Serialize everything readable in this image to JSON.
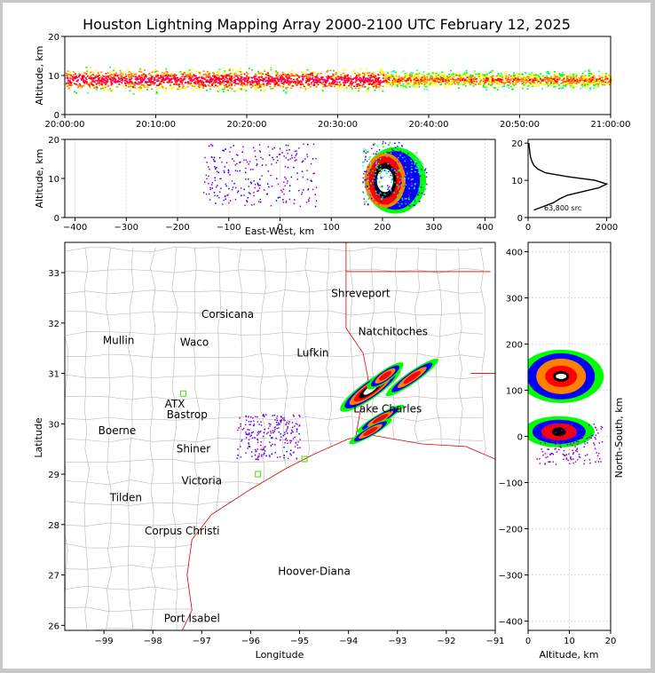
{
  "title": "Houston Lightning Mapping Array 2000-2100 UTC February 12, 2025",
  "chart_data": [
    {
      "id": "time-altitude",
      "type": "heatmap",
      "ylabel": "Altitude, km",
      "ylim": [
        0,
        20
      ],
      "yticks": [
        "0",
        "10",
        "20"
      ],
      "xticks": [
        "20:00:00",
        "20:10:00",
        "20:20:00",
        "20:30:00",
        "20:40:00",
        "20:50:00",
        "21:00:00"
      ],
      "xlim_minutes": [
        0,
        60
      ],
      "density_band_km": [
        2,
        15
      ],
      "peak_altitude_km": 9
    },
    {
      "id": "east-west-altitude",
      "type": "heatmap",
      "xlabel": "East-West, km",
      "ylabel": "Altitude, km",
      "xlim": [
        -420,
        420
      ],
      "ylim": [
        0,
        20
      ],
      "xticks": [
        "−400",
        "−300",
        "−200",
        "−100",
        "0",
        "100",
        "200",
        "300",
        "400"
      ],
      "yticks": [
        "0",
        "10",
        "20"
      ],
      "core_ew_km": [
        150,
        300
      ],
      "scatter_ew_km": [
        -150,
        70
      ]
    },
    {
      "id": "altitude-histogram",
      "type": "line",
      "annotation": "63,800 src",
      "xlim": [
        0,
        2100
      ],
      "ylim": [
        0,
        21
      ],
      "xticks": [
        "0",
        "2000"
      ],
      "yticks": [
        "0",
        "10",
        "20"
      ],
      "altitude_km": [
        2,
        3,
        4,
        5,
        6,
        7,
        8,
        9,
        10,
        11,
        12,
        13,
        14,
        15,
        16,
        17,
        18,
        19,
        20
      ],
      "source_count": [
        150,
        400,
        650,
        800,
        1000,
        1400,
        1800,
        2000,
        1700,
        1000,
        450,
        250,
        150,
        100,
        70,
        50,
        40,
        30,
        20
      ]
    },
    {
      "id": "plan-view-map",
      "type": "scatter",
      "xlabel": "Longitude",
      "ylabel": "Latitude",
      "xlim": [
        -99.8,
        -91
      ],
      "ylim": [
        25.9,
        33.6
      ],
      "xticks": [
        "−99",
        "−98",
        "−97",
        "−96",
        "−95",
        "−94",
        "−93",
        "−92",
        "−91"
      ],
      "yticks": [
        "26",
        "27",
        "28",
        "29",
        "30",
        "31",
        "32",
        "33"
      ],
      "cities": [
        {
          "name": "Shreveport",
          "lon": -93.75,
          "lat": 32.52
        },
        {
          "name": "Corsicana",
          "lon": -96.47,
          "lat": 32.1
        },
        {
          "name": "Natchitoches",
          "lon": -93.09,
          "lat": 31.76
        },
        {
          "name": "Waco",
          "lon": -97.15,
          "lat": 31.55
        },
        {
          "name": "Lufkin",
          "lon": -94.73,
          "lat": 31.34
        },
        {
          "name": "Lake Charles",
          "lon": -93.2,
          "lat": 30.23
        },
        {
          "name": "Bastrop",
          "lon": -97.3,
          "lat": 30.11
        },
        {
          "name": "Boerne",
          "lon": -98.73,
          "lat": 29.79
        },
        {
          "name": "Shiner",
          "lon": -97.17,
          "lat": 29.43
        },
        {
          "name": "Victoria",
          "lon": -97.0,
          "lat": 28.8
        },
        {
          "name": "Tilden",
          "lon": -98.55,
          "lat": 28.46
        },
        {
          "name": "Corpus Christi",
          "lon": -97.4,
          "lat": 27.8
        },
        {
          "name": "Port Isabel",
          "lon": -97.2,
          "lat": 26.07
        }
      ],
      "radars": [
        {
          "name": "Mullin",
          "lon": -98.7,
          "lat": 31.58,
          "color": "#f4883a"
        },
        {
          "name": "ATX",
          "lon": -97.55,
          "lat": 30.32,
          "color": "#f4883a"
        },
        {
          "name": "Hoover-Diana",
          "lon": -94.7,
          "lat": 27.0,
          "color": "#1a1aff"
        }
      ]
    },
    {
      "id": "altitude-north-south",
      "type": "heatmap",
      "xlabel": "Altitude, km",
      "ylabel": "North-South, km",
      "xlim": [
        0,
        20
      ],
      "ylim": [
        -420,
        420
      ],
      "xticks": [
        "0",
        "10",
        "20"
      ],
      "yticks": [
        "−400",
        "−300",
        "−200",
        "−100",
        "0",
        "100",
        "200",
        "300",
        "400"
      ],
      "cluster_ns_km": [
        [
          80,
          180
        ],
        [
          -20,
          40
        ]
      ]
    }
  ],
  "colors": {
    "density_scale": [
      "#8a00d4",
      "#0000ff",
      "#00ffff",
      "#00ff00",
      "#ffff00",
      "#ff7f00",
      "#ff0000",
      "#ff0066"
    ],
    "core": "#ffffff",
    "county_lines": "#b8b8b8",
    "state_lines": "#dd0000",
    "grid": "#dddddd"
  }
}
